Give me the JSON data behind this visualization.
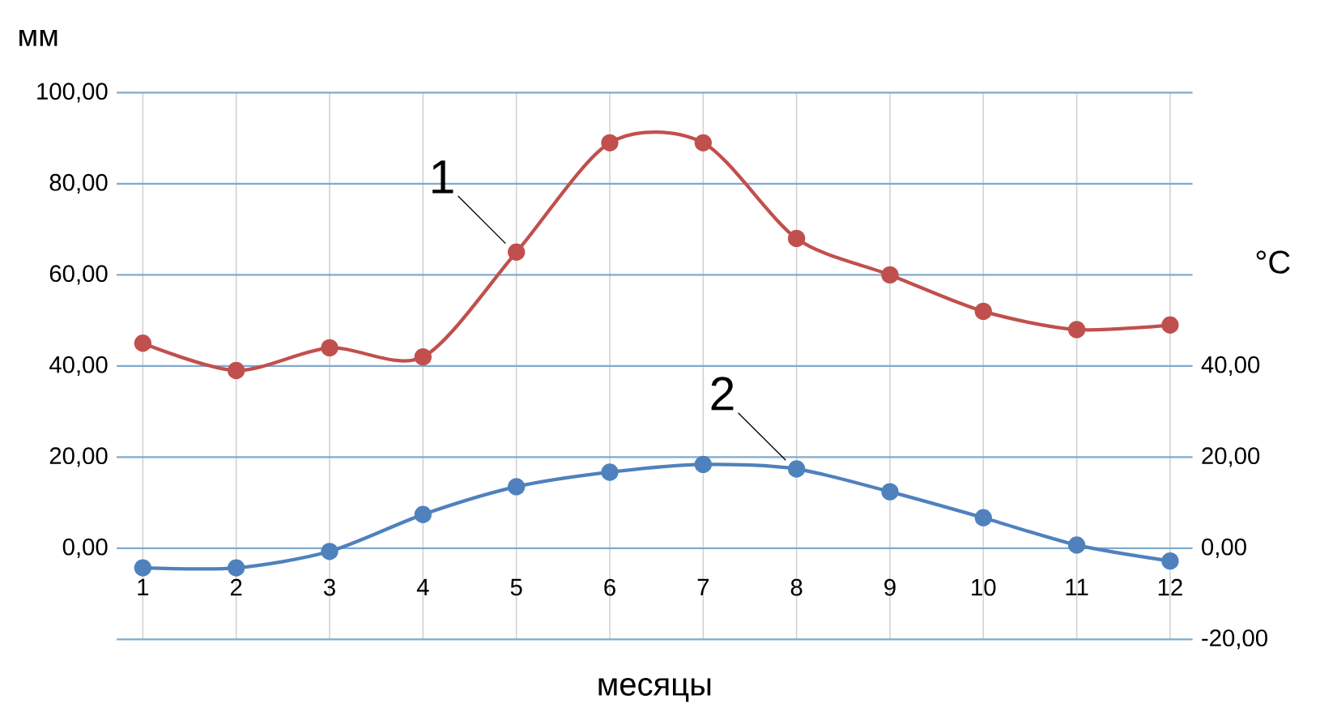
{
  "chart_data": {
    "type": "line",
    "xlabel": "месяцы",
    "ylabel": "мм",
    "y2label": "°C",
    "categories": [
      "1",
      "2",
      "3",
      "4",
      "5",
      "6",
      "7",
      "8",
      "9",
      "10",
      "11",
      "12"
    ],
    "series": [
      {
        "color": "#c0504d",
        "values": [
          45,
          39,
          44,
          42,
          65,
          89,
          89,
          68,
          60,
          52,
          48,
          49
        ]
      },
      {
        "color": "#4f81bd",
        "axis": "y2",
        "values": [
          -4.3,
          -4.3,
          -0.7,
          7.4,
          13.5,
          16.7,
          18.4,
          17.4,
          12.4,
          6.7,
          0.7,
          -2.8
        ]
      }
    ],
    "ylim": [
      -20,
      100
    ],
    "yticks": [
      {
        "value": -20,
        "label": null
      },
      {
        "value": 0,
        "label": "0,00"
      },
      {
        "value": 20,
        "label": "20,00"
      },
      {
        "value": 40,
        "label": "40,00"
      },
      {
        "value": 60,
        "label": "60,00"
      },
      {
        "value": 80,
        "label": "80,00"
      },
      {
        "value": 100,
        "label": "100,00"
      }
    ],
    "y2lim": [
      -20,
      100
    ],
    "y2ticks": [
      {
        "value": -20,
        "label": "-20,00"
      },
      {
        "value": 0,
        "label": "0,00"
      },
      {
        "value": 20,
        "label": "20,00"
      },
      {
        "value": 40,
        "label": "40,00"
      }
    ],
    "grid": true,
    "marker": "circle",
    "line_style": "solid",
    "annotations": [
      {
        "text": "1",
        "x": "5",
        "y": 65
      },
      {
        "text": "2",
        "x": "8",
        "y": 17.4
      }
    ]
  }
}
